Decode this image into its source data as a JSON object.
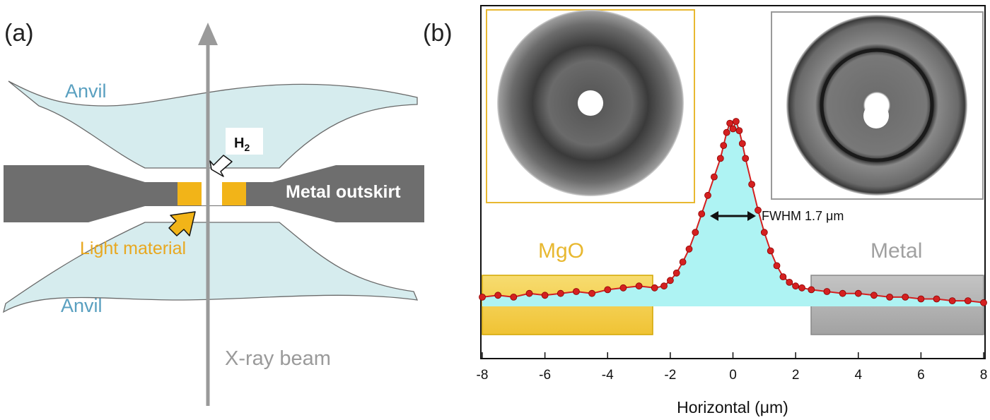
{
  "panel_a": {
    "label": "(a)",
    "anvil_top": "Anvil",
    "anvil_bottom": "Anvil",
    "h2_main": "H",
    "h2_sub": "2",
    "metal_outskirt": "Metal outskirt",
    "light_material": "Light material",
    "xray_beam": "X-ray beam",
    "colors": {
      "anvil_fill": "#d6ecee",
      "metal": "#6e6e6e",
      "light_material": "#f2b418",
      "beam": "#9a9a9a"
    }
  },
  "panel_b": {
    "label": "(b)",
    "mgo_label": "MgO",
    "metal_label": "Metal",
    "fwhm_label": "FWHM 1.7 μm",
    "colors": {
      "profile": "#d42020",
      "peak_fill": "#aef3f3",
      "mgo_box": "#f2c93a",
      "metal_box": "#a6a6a6",
      "left_inset_frame": "#e8b830",
      "right_inset_frame": "#9a9a9a"
    }
  },
  "chart_data": {
    "type": "line",
    "xlabel": "Horizontal (μm)",
    "xlim": [
      -8,
      8
    ],
    "xticks": [
      "-8",
      "-6",
      "-4",
      "-2",
      "0",
      "2",
      "4",
      "6",
      "8"
    ],
    "grid": false,
    "fwhm_um": 1.7,
    "series": [
      {
        "x": [
          -8,
          -7.5,
          -7,
          -6.5,
          -6,
          -5.5,
          -5,
          -4.5,
          -4,
          -3.5,
          -3,
          -2.5,
          -2.2,
          -2,
          -1.8,
          -1.6,
          -1.4,
          -1.2,
          -1,
          -0.8,
          -0.6,
          -0.4,
          -0.3,
          -0.2,
          -0.1,
          0,
          0.1,
          0.2,
          0.3,
          0.4,
          0.6,
          0.8,
          1,
          1.2,
          1.4,
          1.6,
          1.8,
          2,
          2.2,
          2.5,
          3,
          3.5,
          4,
          4.5,
          5,
          5.5,
          6,
          6.5,
          7,
          7.5,
          8
        ],
        "y": [
          0.05,
          0.06,
          0.05,
          0.07,
          0.06,
          0.07,
          0.08,
          0.07,
          0.09,
          0.1,
          0.11,
          0.1,
          0.11,
          0.14,
          0.18,
          0.24,
          0.31,
          0.4,
          0.5,
          0.6,
          0.7,
          0.8,
          0.87,
          0.94,
          0.99,
          0.96,
          1.0,
          0.95,
          0.88,
          0.8,
          0.66,
          0.52,
          0.4,
          0.3,
          0.22,
          0.16,
          0.13,
          0.11,
          0.1,
          0.09,
          0.08,
          0.07,
          0.07,
          0.06,
          0.05,
          0.05,
          0.04,
          0.04,
          0.03,
          0.03,
          0.02
        ]
      }
    ]
  }
}
